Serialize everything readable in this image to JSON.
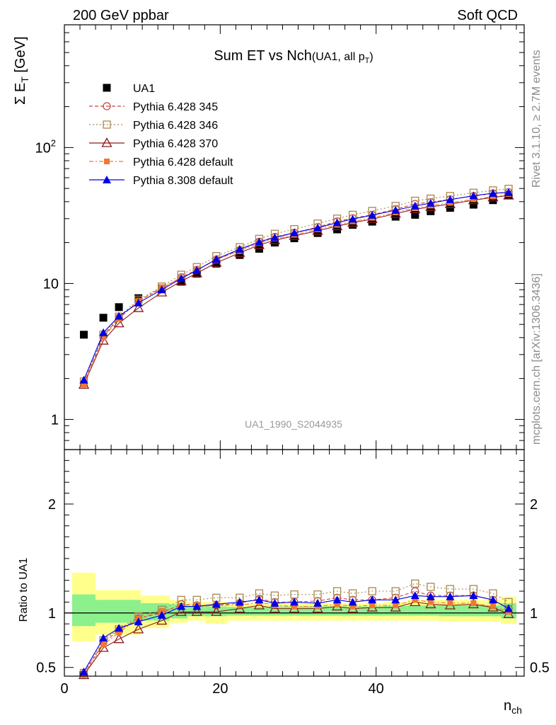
{
  "header": {
    "left": "200 GeV ppbar",
    "right": "Soft QCD"
  },
  "side_text": {
    "top": "Rivet 3.1.10, ≥ 2.7M events",
    "bottom": "mcplots.cern.ch [arXiv:1306.3436]"
  },
  "watermark": "UA1_1990_S2044935",
  "colors": {
    "ua1": "#000000",
    "p345": "#c84646",
    "p346": "#a8874d",
    "p370": "#8b1a1a",
    "p6def": "#f07832",
    "p8def": "#0000e6",
    "band_inner": "#8cf08c",
    "band_outer": "#ffff8c"
  },
  "chart_data": [
    {
      "type": "line",
      "title_main": "Sum ET vs Nch",
      "title_sub": "(UA1, all p",
      "title_sub_subscript": "T",
      "title_sub_close": ")",
      "ylabel_sigma": "Σ E",
      "ylabel_sub": "T",
      "ylabel_unit": " [GeV]",
      "yscale": "log",
      "ylim": [
        0.6,
        800
      ],
      "xlim": [
        0,
        59
      ],
      "ytick_labels": [
        "1",
        "10"
      ],
      "ytick_sup_base": "10",
      "ytick_sup_exp": "2",
      "legend_placement": "top-left",
      "x": [
        2.5,
        5,
        7,
        9.5,
        12.5,
        15,
        17,
        19.5,
        22.5,
        25,
        27,
        29.5,
        32.5,
        35,
        37,
        39.5,
        42.5,
        45,
        47,
        49.5,
        52.5,
        55,
        57
      ],
      "series": [
        {
          "name": "UA1",
          "key": "ua1",
          "values": [
            4.2,
            5.6,
            6.7,
            7.8,
            9.2,
            10.3,
            11.8,
            14.0,
            16.2,
            18.0,
            20.0,
            21.5,
            23.5,
            25.0,
            27.0,
            28.5,
            31.0,
            32.0,
            34.0,
            36.0,
            38.0,
            41.0,
            45.0
          ]
        },
        {
          "name": "Pythia 6.428 345",
          "key": "p345",
          "values": [
            1.85,
            4.1,
            5.6,
            7.4,
            9.2,
            11.1,
            12.6,
            15.0,
            17.6,
            20.3,
            22.0,
            23.6,
            26.0,
            28.6,
            30.2,
            32.0,
            35.2,
            38.5,
            39.6,
            41.6,
            44.0,
            46.0,
            47.0
          ]
        },
        {
          "name": "Pythia 6.428 346",
          "key": "p346",
          "values": [
            1.9,
            4.2,
            5.7,
            7.6,
            9.5,
            11.6,
            13.2,
            15.9,
            18.5,
            21.3,
            23.2,
            25.1,
            27.6,
            30.0,
            32.0,
            34.2,
            37.2,
            40.6,
            42.1,
            44.0,
            46.5,
            48.4,
            49.7
          ]
        },
        {
          "name": "Pythia 6.428 370",
          "key": "p370",
          "values": [
            1.8,
            3.8,
            5.1,
            6.6,
            8.6,
            10.4,
            11.9,
            14.2,
            16.8,
            19.2,
            20.8,
            22.4,
            24.4,
            26.4,
            28.0,
            29.8,
            32.6,
            35.2,
            36.6,
            38.4,
            41.0,
            43.0,
            44.4
          ]
        },
        {
          "name": "Pythia 6.428 default",
          "key": "p6def",
          "values": [
            1.8,
            4.0,
            5.5,
            7.4,
            9.4,
            10.9,
            12.5,
            15.0,
            17.4,
            19.8,
            21.4,
            22.8,
            25.0,
            27.0,
            28.6,
            30.4,
            33.3,
            36.0,
            37.4,
            39.2,
            41.6,
            43.6,
            45.4
          ]
        },
        {
          "name": "Pythia 8.308 default",
          "key": "p8def",
          "values": [
            1.95,
            4.35,
            5.75,
            7.2,
            9.0,
            10.9,
            12.5,
            15.1,
            17.9,
            20.2,
            21.8,
            23.6,
            25.7,
            28.0,
            29.8,
            31.8,
            34.6,
            37.2,
            39.0,
            41.4,
            44.2,
            46.1,
            46.7
          ]
        }
      ]
    },
    {
      "type": "line",
      "ylabel": "Ratio to UA1",
      "xlabel_main": "n",
      "xlabel_sub": "ch",
      "ylim": [
        0.42,
        2.5
      ],
      "xlim": [
        0,
        59
      ],
      "ytick_labels": [
        "0.5",
        "1",
        "2"
      ],
      "xtick_labels": [
        "0",
        "20",
        "40"
      ],
      "band_edges": [
        1,
        4,
        9.8,
        13.5,
        15.8,
        18,
        20.9,
        23.8,
        26.2,
        28,
        31,
        34,
        36,
        38,
        41,
        44,
        46,
        48,
        51,
        54,
        56,
        58
      ],
      "band_inner": [
        [
          0.88,
          1.17
        ],
        [
          0.91,
          1.12
        ],
        [
          0.93,
          1.09
        ],
        [
          0.95,
          1.08
        ],
        [
          0.97,
          1.06
        ],
        [
          0.97,
          1.06
        ],
        [
          0.975,
          1.055
        ],
        [
          0.975,
          1.055
        ],
        [
          0.975,
          1.06
        ],
        [
          0.975,
          1.06
        ],
        [
          0.975,
          1.06
        ],
        [
          0.975,
          1.06
        ],
        [
          0.975,
          1.06
        ],
        [
          0.975,
          1.06
        ],
        [
          0.975,
          1.065
        ],
        [
          0.975,
          1.07
        ],
        [
          0.975,
          1.07
        ],
        [
          0.97,
          1.07
        ],
        [
          0.97,
          1.07
        ],
        [
          0.97,
          1.07
        ],
        [
          0.95,
          1.09
        ]
      ],
      "band_outer": [
        [
          0.74,
          1.37
        ],
        [
          0.8,
          1.21
        ],
        [
          0.86,
          1.16
        ],
        [
          0.91,
          1.12
        ],
        [
          0.93,
          1.1
        ],
        [
          0.9,
          1.1
        ],
        [
          0.93,
          1.08
        ],
        [
          0.93,
          1.09
        ],
        [
          0.93,
          1.09
        ],
        [
          0.93,
          1.09
        ],
        [
          0.93,
          1.09
        ],
        [
          0.93,
          1.09
        ],
        [
          0.93,
          1.09
        ],
        [
          0.93,
          1.09
        ],
        [
          0.93,
          1.1
        ],
        [
          0.93,
          1.12
        ],
        [
          0.93,
          1.12
        ],
        [
          0.92,
          1.12
        ],
        [
          0.92,
          1.12
        ],
        [
          0.92,
          1.12
        ],
        [
          0.9,
          1.15
        ]
      ],
      "x": [
        2.5,
        5,
        7,
        9.5,
        12.5,
        15,
        17,
        19.5,
        22.5,
        25,
        27,
        29.5,
        32.5,
        35,
        37,
        39.5,
        42.5,
        45,
        47,
        49.5,
        52.5,
        55,
        57
      ],
      "series": [
        {
          "name": "Pythia 6.428 345",
          "key": "p345",
          "values": [
            0.44,
            0.73,
            0.84,
            0.95,
            1.0,
            1.08,
            1.07,
            1.07,
            1.09,
            1.13,
            1.1,
            1.1,
            1.11,
            1.14,
            1.12,
            1.12,
            1.14,
            1.2,
            1.16,
            1.16,
            1.16,
            1.12,
            1.04
          ]
        },
        {
          "name": "Pythia 6.428 346",
          "key": "p346",
          "values": [
            0.45,
            0.75,
            0.85,
            0.97,
            1.03,
            1.12,
            1.12,
            1.14,
            1.14,
            1.18,
            1.16,
            1.17,
            1.17,
            1.2,
            1.18,
            1.2,
            1.2,
            1.27,
            1.24,
            1.22,
            1.22,
            1.18,
            1.1
          ]
        },
        {
          "name": "Pythia 6.428 370",
          "key": "p370",
          "values": [
            0.43,
            0.68,
            0.76,
            0.85,
            0.93,
            1.01,
            1.01,
            1.01,
            1.04,
            1.07,
            1.04,
            1.04,
            1.04,
            1.06,
            1.04,
            1.05,
            1.05,
            1.1,
            1.08,
            1.07,
            1.08,
            1.05,
            0.99
          ]
        },
        {
          "name": "Pythia 6.428 default",
          "key": "p6def",
          "values": [
            0.43,
            0.71,
            0.82,
            0.95,
            1.02,
            1.06,
            1.06,
            1.07,
            1.07,
            1.1,
            1.07,
            1.06,
            1.06,
            1.08,
            1.06,
            1.07,
            1.07,
            1.12,
            1.1,
            1.09,
            1.09,
            1.06,
            1.01
          ]
        },
        {
          "name": "Pythia 8.308 default",
          "key": "p8def",
          "values": [
            0.46,
            0.77,
            0.86,
            0.92,
            0.98,
            1.06,
            1.06,
            1.08,
            1.1,
            1.12,
            1.09,
            1.1,
            1.09,
            1.12,
            1.1,
            1.12,
            1.12,
            1.16,
            1.15,
            1.15,
            1.16,
            1.12,
            1.04
          ]
        }
      ]
    }
  ]
}
